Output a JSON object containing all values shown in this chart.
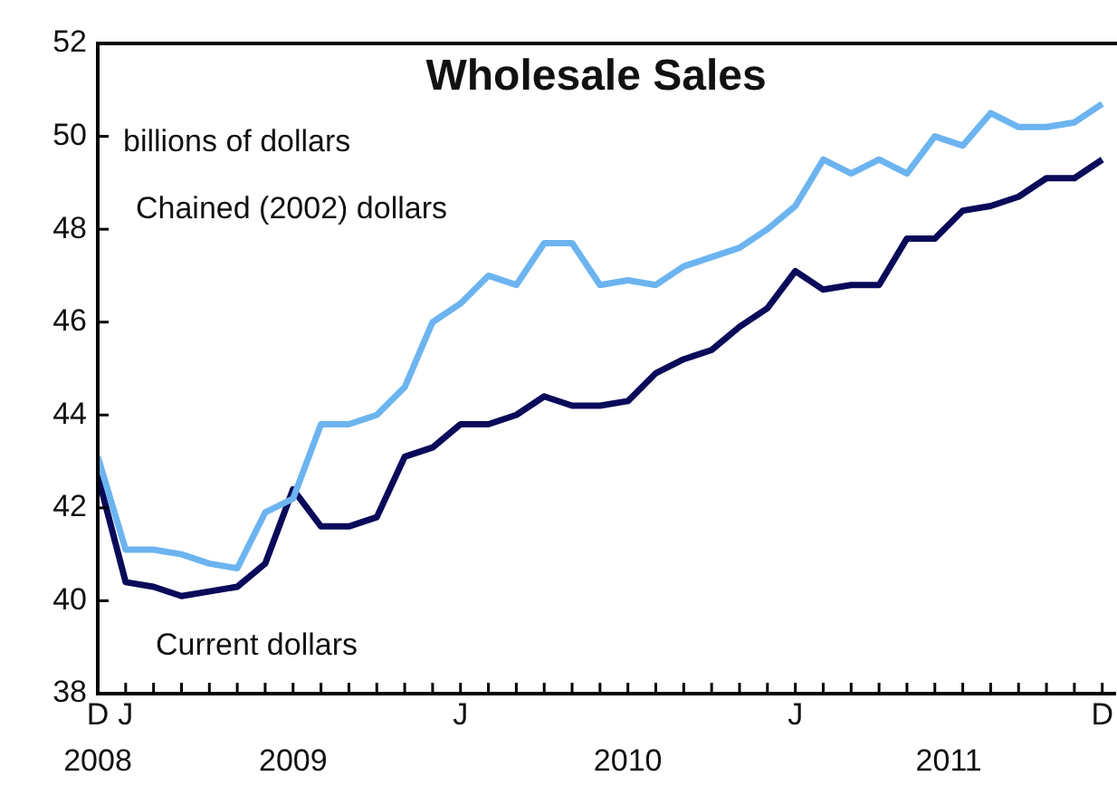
{
  "chart_data": {
    "type": "line",
    "title": "Wholesale Sales",
    "ylabel": "billions of dollars",
    "categories": [
      "D",
      "J",
      null,
      null,
      null,
      null,
      null,
      null,
      null,
      null,
      null,
      null,
      null,
      "J",
      null,
      null,
      null,
      null,
      null,
      null,
      null,
      null,
      null,
      null,
      null,
      "J",
      null,
      null,
      null,
      null,
      null,
      null,
      null,
      null,
      null,
      null,
      "D"
    ],
    "annotations": [
      "2008",
      "2009",
      "2010",
      "2011"
    ],
    "series": [
      {
        "name": "Chained (2002) dollars",
        "color": "#6cb4f0",
        "values": [
          43.1,
          41.1,
          41.1,
          41.0,
          40.8,
          40.7,
          41.9,
          42.2,
          43.8,
          43.8,
          44.0,
          44.6,
          46.0,
          46.4,
          47.0,
          46.8,
          47.7,
          47.7,
          46.8,
          46.9,
          46.8,
          47.2,
          47.4,
          47.6,
          48.0,
          48.5,
          49.5,
          49.2,
          49.5,
          49.2,
          50.0,
          49.8,
          50.5,
          50.2,
          50.2,
          50.3,
          50.7
        ]
      },
      {
        "name": "Current dollars",
        "color": "#0a0a5a",
        "values": [
          42.7,
          40.4,
          40.3,
          40.1,
          40.2,
          40.3,
          40.8,
          42.4,
          41.6,
          41.6,
          41.8,
          43.1,
          43.3,
          43.8,
          43.8,
          44.0,
          44.4,
          44.2,
          44.2,
          44.3,
          44.9,
          45.2,
          45.4,
          45.9,
          46.3,
          47.1,
          46.7,
          46.8,
          46.8,
          47.8,
          47.8,
          48.4,
          48.5,
          48.7,
          49.1,
          49.1,
          49.5
        ]
      }
    ],
    "ylim": [
      38,
      52
    ],
    "yticks": [
      38,
      40,
      42,
      44,
      46,
      48,
      50,
      52
    ],
    "grid": false,
    "legend": false,
    "marker": "none",
    "line_style": "solid"
  }
}
